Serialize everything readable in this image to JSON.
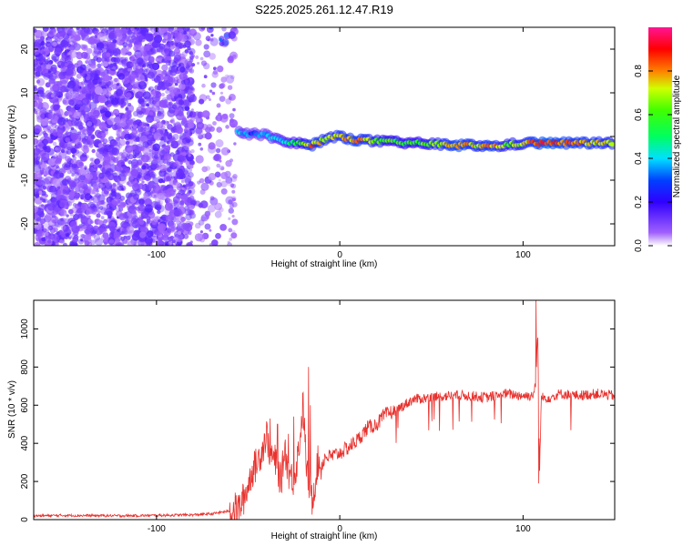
{
  "title": "S225.2025.261.12.47.R19",
  "chart_data": [
    {
      "type": "heatmap",
      "xlabel": "Height of straight line (km)",
      "ylabel": "Frequency (Hz)",
      "xlim": [
        -167,
        150
      ],
      "ylim": [
        -25,
        25
      ],
      "xticks": [
        -100,
        0,
        100
      ],
      "yticks": [
        -20,
        -10,
        0,
        10,
        20
      ],
      "colorbar": {
        "label": "Normalized spectral amplitude",
        "range": [
          0,
          1
        ],
        "ticks": [
          0.0,
          0.2,
          0.4,
          0.6,
          0.8
        ],
        "colormap": [
          "#ffffff",
          "#8000ff",
          "#0000ff",
          "#00ffff",
          "#00ff00",
          "#ffff00",
          "#ff0000",
          "#ff1493"
        ]
      },
      "regions": [
        {
          "name": "noise",
          "x": [
            -167,
            -80
          ],
          "f": [
            -25,
            25
          ],
          "amplitude": 0.15
        },
        {
          "name": "sparse-noise",
          "x": [
            -78,
            -57
          ],
          "f": [
            -25,
            25
          ],
          "amplitude": 0.1
        },
        {
          "name": "top-burst",
          "x": [
            -72,
            -55
          ],
          "f": [
            21,
            25
          ],
          "amplitude": 0.45
        }
      ],
      "ridge": [
        {
          "x": -55,
          "f": 1.0,
          "amp": 0.4
        },
        {
          "x": -48,
          "f": 0.5,
          "amp": 0.3
        },
        {
          "x": -40,
          "f": 0.5,
          "amp": 0.35
        },
        {
          "x": -30,
          "f": -1.5,
          "amp": 0.45
        },
        {
          "x": -22,
          "f": -1.5,
          "amp": 0.55
        },
        {
          "x": -15,
          "f": -2.0,
          "amp": 0.8
        },
        {
          "x": -8,
          "f": -0.5,
          "amp": 0.7
        },
        {
          "x": 0,
          "f": 0.0,
          "amp": 0.75
        },
        {
          "x": 10,
          "f": -0.8,
          "amp": 0.8
        },
        {
          "x": 25,
          "f": -1.2,
          "amp": 0.6
        },
        {
          "x": 40,
          "f": -1.5,
          "amp": 0.55
        },
        {
          "x": 55,
          "f": -1.8,
          "amp": 0.7
        },
        {
          "x": 65,
          "f": -2.0,
          "amp": 0.85
        },
        {
          "x": 75,
          "f": -2.0,
          "amp": 0.7
        },
        {
          "x": 82,
          "f": -2.3,
          "amp": 0.8
        },
        {
          "x": 90,
          "f": -2.0,
          "amp": 0.65
        },
        {
          "x": 100,
          "f": -1.5,
          "amp": 0.7
        },
        {
          "x": 112,
          "f": -1.5,
          "amp": 0.9
        },
        {
          "x": 125,
          "f": -1.5,
          "amp": 0.8
        },
        {
          "x": 140,
          "f": -1.5,
          "amp": 0.75
        },
        {
          "x": 150,
          "f": -1.5,
          "amp": 0.7
        }
      ]
    },
    {
      "type": "line",
      "xlabel": "Height of straight line (km)",
      "ylabel": "SNR (10 * v/v)",
      "xlim": [
        -167,
        150
      ],
      "ylim": [
        0,
        1150
      ],
      "xticks": [
        -100,
        0,
        100
      ],
      "yticks": [
        0,
        200,
        400,
        600,
        800,
        1000
      ],
      "color": "#e8322e",
      "series": [
        {
          "name": "SNR",
          "x": [
            -167,
            -150,
            -120,
            -100,
            -80,
            -70,
            -65,
            -60,
            -55,
            -52,
            -50,
            -48,
            -45,
            -42,
            -40,
            -38,
            -35,
            -32,
            -30,
            -28,
            -25,
            -22,
            -20,
            -18,
            -15,
            -12,
            -10,
            -8,
            -5,
            0,
            5,
            10,
            15,
            20,
            25,
            30,
            35,
            40,
            50,
            60,
            70,
            80,
            90,
            100,
            105,
            107,
            108,
            109,
            110,
            115,
            120,
            130,
            140,
            150
          ],
          "values": [
            20,
            22,
            20,
            22,
            25,
            30,
            38,
            45,
            60,
            120,
            180,
            250,
            300,
            380,
            450,
            350,
            300,
            200,
            380,
            250,
            200,
            400,
            600,
            250,
            100,
            300,
            280,
            330,
            330,
            350,
            380,
            420,
            480,
            500,
            550,
            570,
            600,
            630,
            640,
            650,
            650,
            640,
            660,
            650,
            650,
            700,
            1000,
            250,
            640,
            640,
            660,
            650,
            660,
            650
          ]
        }
      ],
      "spikes": [
        {
          "x": -38,
          "value": 530
        },
        {
          "x": -34,
          "value": 500
        },
        {
          "x": -28,
          "value": 450
        },
        {
          "x": -25,
          "value": 540
        },
        {
          "x": -17,
          "value": 800
        },
        {
          "x": -16,
          "value": 600
        },
        {
          "x": 107,
          "value": 1150
        },
        {
          "x": 108.5,
          "value": 190
        }
      ]
    }
  ]
}
